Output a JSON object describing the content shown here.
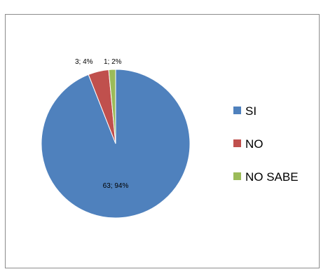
{
  "chart_data": {
    "type": "pie",
    "categories": [
      "SI",
      "NO",
      "NO SABE"
    ],
    "values": [
      63,
      3,
      1
    ],
    "percent_labels": [
      "94%",
      "4%",
      "2%"
    ],
    "data_labels": [
      "63; 94%",
      "3; 4%",
      "1; 2%"
    ],
    "colors": [
      "#4F81BD",
      "#C0504D",
      "#9BBB59"
    ],
    "title": "",
    "legend_position": "right",
    "start_angle": "12 o'clock, clockwise"
  }
}
